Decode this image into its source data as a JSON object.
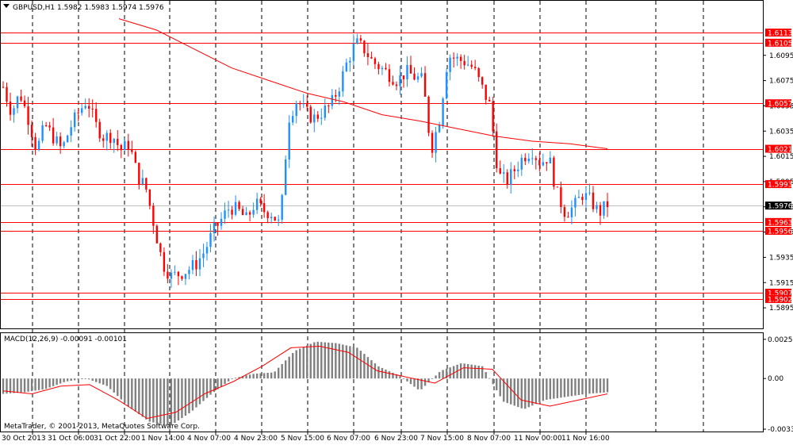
{
  "header": {
    "symbol": "GBPUSD,H1",
    "ohlc": "1.5982 1.5983 1.5974 1.5976"
  },
  "macd_header": "MACD(12,26,9) -0.00091 -0.00101",
  "copyright": "MetaTrader, © 2001-2013, MetaQuotes Software Corp.",
  "colors": {
    "bull": "#1e90ff",
    "bear": "#ff0000",
    "ma": "#ff0000",
    "level": "#ff0000",
    "grid": "#000000",
    "macd_hist": "#808080",
    "macd_signal": "#ff0000",
    "current_price_bg": "#000000"
  },
  "chart_data": {
    "type": "candlestick",
    "symbol": "GBPUSD",
    "timeframe": "H1",
    "ylim": [
      1.5885,
      1.6125
    ],
    "price_ticks": [
      "1.6095",
      "1.6075",
      "1.6055",
      "1.6035",
      "1.6015",
      "1.5995",
      "1.5975",
      "1.5955",
      "1.5935",
      "1.5915",
      "1.5895"
    ],
    "time_labels": [
      "30 Oct 2013",
      "31 Oct 06:00",
      "31 Oct 22:00",
      "1 Nov 14:00",
      "4 Nov 07:00",
      "4 Nov 23:00",
      "5 Nov 15:00",
      "6 Nov 07:00",
      "6 Nov 23:00",
      "7 Nov 15:00",
      "8 Nov 07:00",
      "11 Nov 00:00",
      "11 Nov 16:00"
    ],
    "horizontal_levels": [
      {
        "value": 1.6113,
        "label": "1.6113"
      },
      {
        "value": 1.6105,
        "label": "1.6105"
      },
      {
        "value": 1.6057,
        "label": "1.6057"
      },
      {
        "value": 1.6021,
        "label": "1.6021"
      },
      {
        "value": 1.5993,
        "label": "1.5993"
      },
      {
        "value": 1.5963,
        "label": "1.5963"
      },
      {
        "value": 1.5956,
        "label": "1.5956"
      },
      {
        "value": 1.5907,
        "label": "1.5907"
      },
      {
        "value": 1.5902,
        "label": "1.5902"
      }
    ],
    "current_price": {
      "value": 1.5976,
      "label": "1.5976"
    },
    "price_path": [
      1.607,
      1.605,
      1.6065,
      1.6045,
      1.602,
      1.604,
      1.603,
      1.602,
      1.6038,
      1.605,
      1.606,
      1.604,
      1.603,
      1.6032,
      1.602,
      1.6025,
      1.6,
      1.599,
      1.596,
      1.593,
      1.592,
      1.5922,
      1.5925,
      1.593,
      1.594,
      1.5955,
      1.5965,
      1.5975,
      1.5972,
      1.5965,
      1.5978,
      1.5972,
      1.597,
      1.596,
      1.6045,
      1.606,
      1.605,
      1.6045,
      1.605,
      1.6055,
      1.607,
      1.609,
      1.6105,
      1.61,
      1.609,
      1.6085,
      1.608,
      1.6075,
      1.6082,
      1.6078,
      1.6075,
      1.602,
      1.6045,
      1.6095,
      1.6092,
      1.609,
      1.6085,
      1.607,
      1.6055,
      1.6,
      1.5995,
      1.6005,
      1.6015,
      1.602,
      1.601,
      1.6015,
      1.5985,
      1.597,
      1.5975,
      1.5985,
      1.598,
      1.597,
      1.5977
    ],
    "ma_path": [
      1.6124,
      1.6115,
      1.61,
      1.6085,
      1.6075,
      1.6065,
      1.6058,
      1.6048,
      1.6043,
      1.6037,
      1.6031,
      1.6027,
      1.6025,
      1.6021
    ],
    "macd": {
      "ylim": [
        -0.0034,
        0.0029
      ],
      "ticks": [
        "0.00255",
        "0.00",
        "-0.0033"
      ],
      "value": -0.00091,
      "signal_value": -0.00101,
      "hist_path": [
        -0.001,
        -0.0009,
        -0.0007,
        -0.0002,
        0.0,
        -0.0005,
        -0.0018,
        -0.0028,
        -0.0031,
        -0.0022,
        -0.001,
        0.0,
        0.0003,
        0.0004,
        0.0018,
        0.0024,
        0.0023,
        0.002,
        0.0008,
        0.0002,
        -0.0008,
        0.0005,
        0.001,
        0.0008,
        -0.0015,
        -0.002,
        -0.0014,
        -0.0012,
        -0.001,
        -0.0009
      ],
      "signal_path": [
        -0.0008,
        -0.001,
        -0.0005,
        -0.0004,
        -0.0014,
        -0.0026,
        -0.0022,
        -0.001,
        -0.0002,
        0.0008,
        0.002,
        0.0021,
        0.0017,
        0.0005,
        0.0001,
        -0.0003,
        0.0007,
        0.0006,
        -0.0014,
        -0.0018,
        -0.0014,
        -0.001
      ]
    }
  }
}
